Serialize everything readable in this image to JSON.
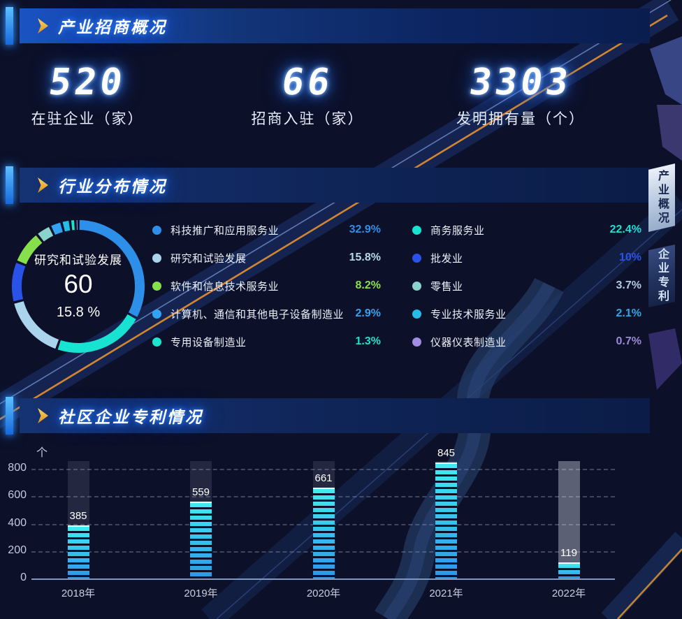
{
  "panels": [
    {
      "id": "overview",
      "title": "产业招商概况",
      "stats": [
        {
          "value": "520",
          "label": "在驻企业（家）"
        },
        {
          "value": "66",
          "label": "招商入驻（家）"
        },
        {
          "value": "3303",
          "label": "发明拥有量（个）"
        }
      ]
    },
    {
      "id": "industry-distribution",
      "title": "行业分布情况",
      "center": {
        "name": "研究和试验发展",
        "value": "60",
        "percent": "15.8 %"
      }
    },
    {
      "id": "community-patents",
      "title": "社区企业专利情况",
      "y_unit": "个"
    }
  ],
  "side_tabs": [
    {
      "label": "产业概况",
      "active": true
    },
    {
      "label": "企业专利",
      "active": false
    }
  ],
  "colors": {
    "background": "#0c1028",
    "header_accent": "#2f9bff",
    "header_arrow": "#f2b63c",
    "digital_glow": "#2e7bff",
    "bar_top": "#41ecf0",
    "bar_bottom": "#2b96e8",
    "bar_track": "rgba(142,152,180,0.18)",
    "bar_track_highlight": "rgba(220,228,244,0.38)",
    "grid": "rgba(128,138,168,0.45)",
    "axis": "#7e98c0"
  },
  "chart_data": [
    {
      "type": "pie",
      "title": "行业分布情况",
      "donut": true,
      "center_label": {
        "name": "研究和试验发展",
        "value": 60,
        "percent": "15.8 %"
      },
      "legend_position": "right, two columns",
      "slices": [
        {
          "name": "科技推广和应用服务业",
          "value": 32.9,
          "percent": "32.9%",
          "color": "#2e8fe8",
          "percent_color": "#2e8fe8"
        },
        {
          "name": "研究和试验发展",
          "value": 15.8,
          "percent": "15.8%",
          "color": "#aad4ec",
          "percent_color": "#b5d8ea"
        },
        {
          "name": "软件和信息技术服务业",
          "value": 8.2,
          "percent": "8.2%",
          "color": "#86e04c",
          "percent_color": "#8ae04a"
        },
        {
          "name": "计算机、通信和其他电子设备制造业",
          "value": 2.9,
          "percent": "2.9%",
          "color": "#32a2f2",
          "percent_color": "#38a0f0"
        },
        {
          "name": "专用设备制造业",
          "value": 1.3,
          "percent": "1.3%",
          "color": "#1de4cc",
          "percent_color": "#1fe0c8"
        },
        {
          "name": "商务服务业",
          "value": 22.4,
          "percent": "22.4%",
          "color": "#18e2d2",
          "percent_color": "#18e2d2"
        },
        {
          "name": "批发业",
          "value": 10,
          "percent": "10%",
          "color": "#2b52e8",
          "percent_color": "#2b52e8"
        },
        {
          "name": "零售业",
          "value": 3.7,
          "percent": "3.7%",
          "color": "#8ad2cc",
          "percent_color": "#b4c8e4"
        },
        {
          "name": "专业技术服务业",
          "value": 2.1,
          "percent": "2.1%",
          "color": "#26bce8",
          "percent_color": "#2fa8e0"
        },
        {
          "name": "仪器仪表制造业",
          "value": 0.7,
          "percent": "0.7%",
          "color": "#a18ee4",
          "percent_color": "#9a8ad8"
        }
      ],
      "draw_order": [
        0,
        5,
        1,
        6,
        2,
        7,
        3,
        8,
        4,
        9
      ],
      "legend_columns": [
        [
          0,
          1,
          2,
          3,
          4
        ],
        [
          5,
          6,
          7,
          8,
          9
        ]
      ]
    },
    {
      "type": "bar",
      "title": "社区企业专利情况",
      "categories": [
        "2018年",
        "2019年",
        "2020年",
        "2021年",
        "2022年"
      ],
      "values": [
        385,
        559,
        661,
        845,
        119
      ],
      "ylabel": "个",
      "ylim": [
        0,
        860
      ],
      "yticks": [
        0,
        200,
        400,
        600,
        800
      ],
      "grid": "dashed horizontal",
      "highlight_track_index": 4
    }
  ]
}
